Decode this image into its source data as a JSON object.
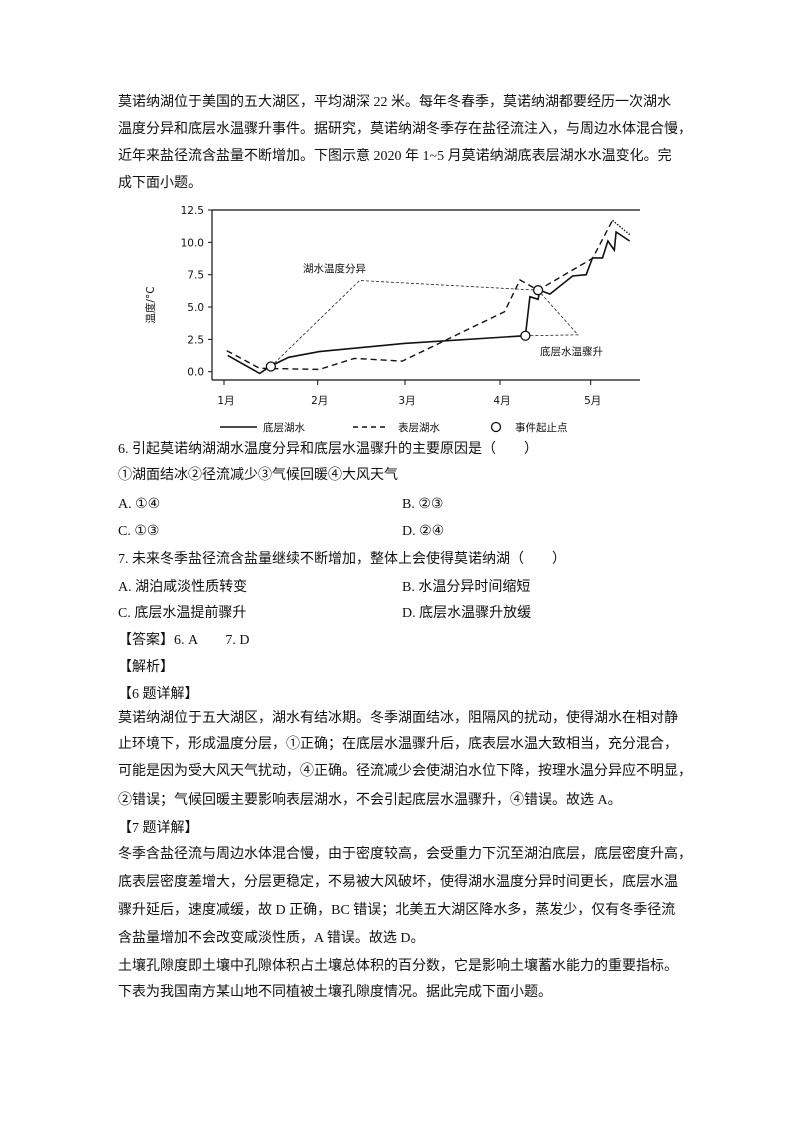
{
  "intro": [
    "莫诺纳湖位于美国的五大湖区，平均湖深 22 米。每年冬春季，莫诺纳湖都要经历一次湖水",
    "温度分异和底层水温骤升事件。据研究，莫诺纳湖冬季存在盐径流注入，与周边水体混合慢，",
    "近年来盐径流含盐量不断增加。下图示意 2020 年 1~5 月莫诺纳湖底表层湖水水温变化。完",
    "成下面小题。"
  ],
  "q6": {
    "stem": "6. 引起莫诺纳湖湖水温度分异和底层水温骤升的主要原因是（　　）",
    "items": "①湖面结冰②径流减少③气候回暖④大风天气",
    "A": "A. ①④",
    "B": "B. ②③",
    "C": "C. ①③",
    "D": "D. ②④"
  },
  "q7": {
    "stem": "7. 未来冬季盐径流含盐量继续不断增加，整体上会使得莫诺纳湖（　　）",
    "A": "A. 湖泊咸淡性质转变",
    "B": "B. 水温分异时间缩短",
    "C": "C. 底层水温提前骤升",
    "D": "D. 底层水温骤升放缓"
  },
  "answer": "【答案】6. A　　7. D",
  "analysis": "【解析】",
  "q6_detail": {
    "title": "【6 题详解】",
    "lines": [
      "莫诺纳湖位于五大湖区，湖水有结冰期。冬季湖面结冰，阻隔风的扰动，使得湖水在相对静",
      "止环境下，形成温度分层，①正确；在底层水温骤升后，底表层水温大致相当，充分混合，",
      "可能是因为受大风天气扰动，④正确。径流减少会使湖泊水位下降，按理水温分异应不明显，",
      "②错误；气候回暖主要影响表层湖水，不会引起底层水温骤升，④错误。故选 A。"
    ]
  },
  "q7_detail": {
    "title": "【7 题详解】",
    "lines": [
      "冬季含盐径流与周边水体混合慢，由于密度较高，会受重力下沉至湖泊底层，底层密度升高，",
      "底表层密度差增大，分层更稳定，不易被大风破坏，使得湖水温度分异时间更长，底层水温",
      "骤升延后，速度减缓，故 D 正确，BC 错误；北美五大湖区降水多，蒸发少，仅有冬季径流",
      "含盐量增加不会改变咸淡性质，A 错误。故选 D。"
    ]
  },
  "next": [
    "土壤孔隙度即土壤中孔隙体积占土壤总体积的百分数，它是影响土壤蓄水能力的重要指标。",
    "下表为我国南方某山地不同植被土壤孔隙度情况。据此完成下面小题。"
  ],
  "chart_data": {
    "type": "line",
    "ylabel": "温度/°C",
    "ylim": [
      0,
      12.5
    ],
    "yticks": [
      "0.0",
      "2.5",
      "5.0",
      "7.5",
      "10.0",
      "12.5"
    ],
    "xticks": [
      "1月",
      "2月",
      "3月",
      "4月",
      "5月"
    ],
    "x_unit": "month (1 = start of 1月)",
    "series": [
      {
        "name": "底层湖水",
        "style": "solid",
        "x": [
          1.04,
          1.38,
          1.5,
          1.69,
          2.02,
          2.99,
          4.28,
          4.33,
          4.42,
          4.44,
          4.55,
          4.8,
          4.95,
          5.02,
          5.13,
          5.19,
          5.26,
          5.28,
          5.43
        ],
        "y": [
          1.26,
          -0.13,
          0.44,
          1.11,
          1.55,
          2.19,
          2.78,
          5.8,
          5.6,
          6.3,
          6.0,
          7.4,
          7.5,
          8.8,
          8.8,
          10.1,
          9.4,
          10.8,
          10.1
        ]
      },
      {
        "name": "表层湖水",
        "style": "dashed",
        "x": [
          1.03,
          1.38,
          2.02,
          2.42,
          2.97,
          4.05,
          4.22,
          4.42,
          4.8,
          5.02,
          5.24,
          5.43
        ],
        "y": [
          1.62,
          0.26,
          0.18,
          1.03,
          0.82,
          4.64,
          7.09,
          6.3,
          7.86,
          8.76,
          11.7,
          10.6
        ]
      }
    ],
    "events": [
      {
        "x": 1.5,
        "y": 0.4
      },
      {
        "x": 4.28,
        "y": 2.78
      },
      {
        "x": 4.42,
        "y": 6.3
      }
    ],
    "annotations": [
      {
        "text": "湖水温度分异",
        "apex": {
          "x": 2.48,
          "y": 7.05
        }
      },
      {
        "text": "底层水温骤升",
        "apex": {
          "x": 4.86,
          "y": 2.85
        }
      }
    ],
    "legend": {
      "position": "bottom",
      "items": [
        "底层湖水",
        "表层湖水",
        "事件起止点"
      ]
    }
  }
}
